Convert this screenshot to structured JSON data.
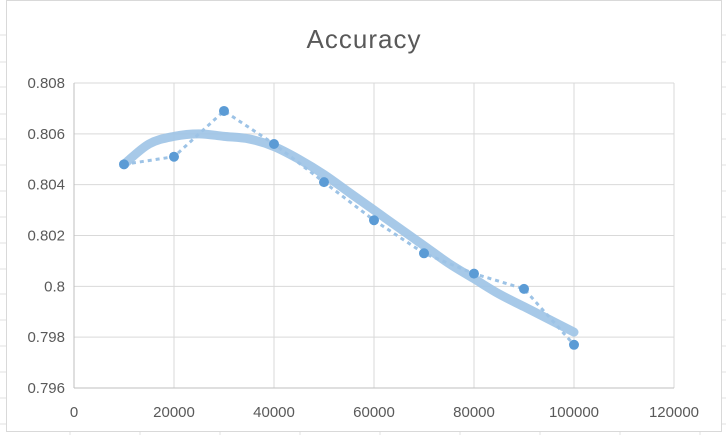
{
  "chart_data": {
    "type": "scatter",
    "title": "Accuracy",
    "xlabel": "",
    "ylabel": "",
    "xlim": [
      0,
      120000
    ],
    "ylim": [
      0.796,
      0.808
    ],
    "x_ticks": [
      "0",
      "20000",
      "40000",
      "60000",
      "80000",
      "100000",
      "120000"
    ],
    "y_ticks": [
      "0.796",
      "0.798",
      "0.8",
      "0.802",
      "0.804",
      "0.806",
      "0.808"
    ],
    "grid": true,
    "legend": "none",
    "series": [
      {
        "style": "markers with dotted connecting line",
        "color": "#5b9bd5",
        "x": [
          10000,
          20000,
          30000,
          40000,
          50000,
          60000,
          70000,
          80000,
          90000,
          100000
        ],
        "values": [
          0.8048,
          0.8051,
          0.8069,
          0.8056,
          0.8041,
          0.8026,
          0.8013,
          0.8005,
          0.7999,
          0.7977
        ]
      }
    ],
    "trendline": {
      "type": "polynomial",
      "color": "#9dc3e6",
      "x": [
        10000,
        15000,
        20000,
        25000,
        30000,
        35000,
        40000,
        45000,
        50000,
        55000,
        60000,
        65000,
        70000,
        75000,
        80000,
        85000,
        90000,
        95000,
        100000
      ],
      "values": [
        0.8048,
        0.8056,
        0.8059,
        0.806,
        0.8059,
        0.8058,
        0.8055,
        0.805,
        0.8044,
        0.8037,
        0.803,
        0.8023,
        0.8016,
        0.8009,
        0.8003,
        0.7997,
        0.7992,
        0.7987,
        0.7982
      ]
    }
  },
  "colors": {
    "gridline": "#d9d9d9",
    "axis": "#bfbfbf",
    "text": "#595959",
    "sheet_grid": "#e1e1e1"
  }
}
